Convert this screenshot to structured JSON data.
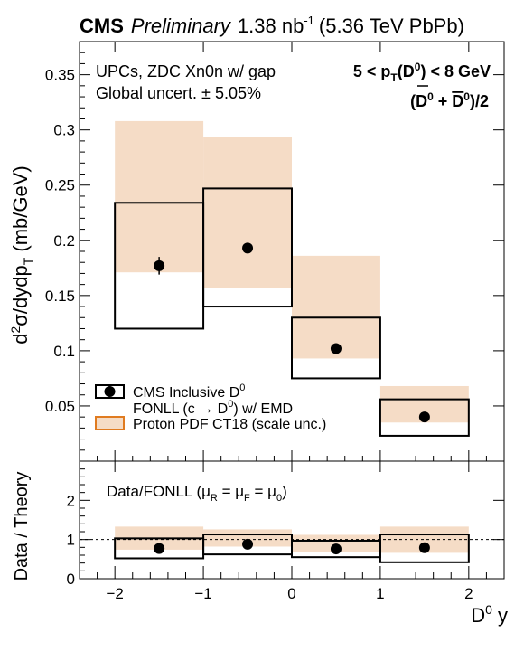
{
  "header": {
    "experiment": "CMS",
    "status": "Preliminary",
    "lumi_value": "1.38 nb",
    "lumi_exp": "-1",
    "energy": "(5.36 TeV PbPb)"
  },
  "annotations": {
    "selection": "UPCs, ZDC Xn0n w/ gap",
    "global_uncert": "Global uncert. ± 5.05%",
    "pt_range": {
      "left": "5 < p",
      "sub": "T",
      "mid": "(D",
      "sup": "0",
      "right": ") < 8 GeV"
    },
    "species": {
      "a": "(D",
      "sup1": "0",
      "b": " + ",
      "dbar": "D",
      "sup2": "0",
      "c": ")/2"
    }
  },
  "legend": {
    "data_label": "CMS Inclusive D",
    "data_sup": "0",
    "fonll_label_a": "FONLL (c → D",
    "fonll_sup": "0",
    "fonll_label_b": ") w/ EMD",
    "pdf_label": "Proton PDF CT18 (scale unc.)"
  },
  "colors": {
    "band_fill": "#f5dcc6",
    "band_legend_border": "#e07b20",
    "marker": "#000000"
  },
  "chart_data": [
    {
      "type": "bar",
      "panel": "top",
      "ylabel_main": "d",
      "ylabel_sup": "2",
      "ylabel_rest": "σ/dydp",
      "ylabel_sub": "T",
      "ylabel_unit": " (mb/GeV)",
      "ylim": [
        0,
        0.38
      ],
      "yticks": [
        0.05,
        0.1,
        0.15,
        0.2,
        0.25,
        0.3,
        0.35
      ],
      "ytick_labels": [
        "0.05",
        "0.1",
        "0.15",
        "0.2",
        "0.25",
        "0.3",
        "0.35"
      ],
      "xlim": [
        -2.4,
        2.4
      ],
      "bins": [
        [
          -2,
          -1
        ],
        [
          -1,
          0
        ],
        [
          0,
          1
        ],
        [
          1,
          2
        ]
      ],
      "data": {
        "x": [
          -1.5,
          -0.5,
          0.5,
          1.5
        ],
        "y": [
          0.177,
          0.193,
          0.102,
          0.04
        ],
        "err": [
          0.008,
          0.004,
          0.002,
          0.002
        ]
      },
      "fonll_box": {
        "low": [
          0.12,
          0.14,
          0.075,
          0.023
        ],
        "high": [
          0.234,
          0.247,
          0.13,
          0.056
        ]
      },
      "pdf_band": {
        "low": [
          0.171,
          0.157,
          0.093,
          0.035
        ],
        "high": [
          0.308,
          0.294,
          0.186,
          0.068
        ]
      }
    },
    {
      "type": "bar",
      "panel": "ratio",
      "ylabel": "Data / Theory",
      "title": "Data/FONLL",
      "title_scale": {
        "a": "(μ",
        "s1": "R",
        "b": " = μ",
        "s2": "F",
        "c": " = μ",
        "s3": "0",
        "d": ")"
      },
      "xlabel": "D",
      "xlabel_sup": "0",
      "xlabel_rest": " y",
      "ylim": [
        0,
        3
      ],
      "yticks": [
        0,
        1,
        2
      ],
      "ytick_labels": [
        "0",
        "1",
        "2"
      ],
      "xlim": [
        -2.4,
        2.4
      ],
      "xticks": [
        -2,
        -1,
        0,
        1,
        2
      ],
      "xtick_labels": [
        "−2",
        "−1",
        "0",
        "1",
        "2"
      ],
      "reference_line": 1,
      "bins": [
        [
          -2,
          -1
        ],
        [
          -1,
          0
        ],
        [
          0,
          1
        ],
        [
          1,
          2
        ]
      ],
      "data": {
        "x": [
          -1.5,
          -0.5,
          0.5,
          1.5
        ],
        "y": [
          0.77,
          0.88,
          0.76,
          0.79
        ]
      },
      "fonll_box": {
        "low": [
          0.52,
          0.62,
          0.55,
          0.42
        ],
        "high": [
          1.03,
          1.13,
          0.97,
          1.13
        ]
      },
      "pdf_band": {
        "low": [
          0.74,
          0.82,
          0.68,
          0.66
        ],
        "high": [
          1.33,
          1.26,
          1.12,
          1.33
        ]
      }
    }
  ]
}
